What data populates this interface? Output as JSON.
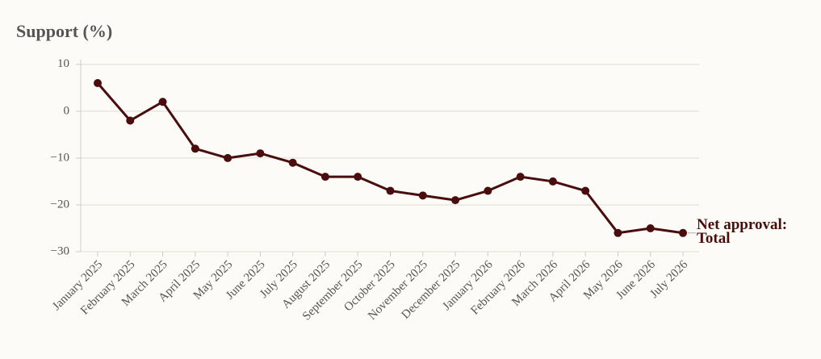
{
  "chart_data": {
    "type": "line",
    "title": "Support (%)",
    "categories": [
      "January 2025",
      "February 2025",
      "March 2025",
      "April 2025",
      "May 2025",
      "June 2025",
      "July 2025",
      "August 2025",
      "September 2025",
      "October 2025",
      "November 2025",
      "December 2025",
      "January 2026",
      "February 2026",
      "March 2026",
      "April 2026",
      "May 2026",
      "June 2026",
      "July 2026"
    ],
    "series": [
      {
        "name": "Net approval: Total",
        "color": "#4a0d0d",
        "values": [
          6,
          -2,
          2,
          -8,
          -10,
          -9,
          -11,
          -14,
          -14,
          -17,
          -18,
          -19,
          -17,
          -14,
          -15,
          -17,
          -26,
          -25,
          -26
        ]
      }
    ],
    "ylim": [
      -30,
      11
    ],
    "yticks": [
      {
        "value": -30,
        "label": "−30"
      },
      {
        "value": -20,
        "label": "−20"
      },
      {
        "value": -10,
        "label": "−10"
      },
      0,
      10
    ],
    "grid": true
  }
}
